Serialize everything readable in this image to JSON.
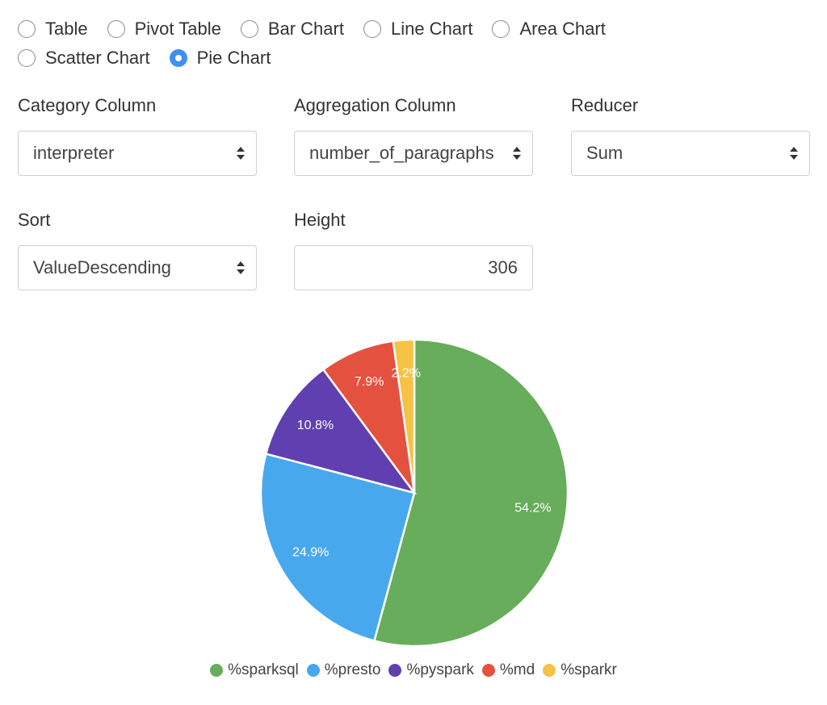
{
  "viz_types": [
    {
      "label": "Table",
      "selected": false
    },
    {
      "label": "Pivot Table",
      "selected": false
    },
    {
      "label": "Bar Chart",
      "selected": false
    },
    {
      "label": "Line Chart",
      "selected": false
    },
    {
      "label": "Area Chart",
      "selected": false
    },
    {
      "label": "Scatter Chart",
      "selected": false
    },
    {
      "label": "Pie Chart",
      "selected": true
    }
  ],
  "controls": {
    "category_column": {
      "label": "Category Column",
      "value": "interpreter"
    },
    "aggregation_column": {
      "label": "Aggregation Column",
      "value": "number_of_paragraphs"
    },
    "reducer": {
      "label": "Reducer",
      "value": "Sum"
    },
    "sort": {
      "label": "Sort",
      "value": "ValueDescending"
    },
    "height": {
      "label": "Height",
      "value": "306"
    }
  },
  "chart_data": {
    "type": "pie",
    "categories": [
      "%sparksql",
      "%presto",
      "%pyspark",
      "%md",
      "%sparkr"
    ],
    "values": [
      54.2,
      24.9,
      10.8,
      7.9,
      2.2
    ],
    "labels": [
      "54.2%",
      "24.9%",
      "10.8%",
      "7.9%",
      "2.2%"
    ],
    "colors": [
      "#67ad5b",
      "#48a8ee",
      "#6040b0",
      "#e5513f",
      "#f5c245"
    ],
    "legend": "bottom"
  }
}
